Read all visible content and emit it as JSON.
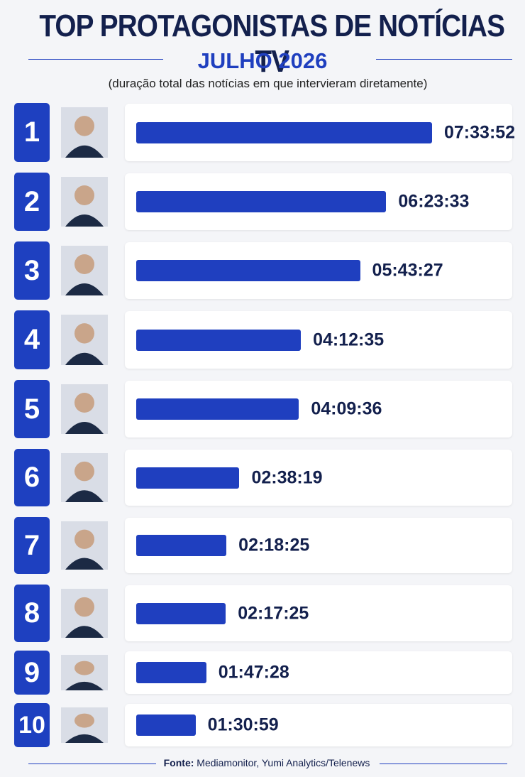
{
  "chart_data": {
    "type": "bar",
    "title": "TOP PROTAGONISTAS DE NOTÍCIAS TV",
    "subtitle": "JULHO 2026",
    "note": "(duração total das notícias em que intervieram diretamente)",
    "categories": [
      "1",
      "2",
      "3",
      "4",
      "5",
      "6",
      "7",
      "8",
      "9",
      "10"
    ],
    "values": [
      27232,
      23013,
      20607,
      15155,
      14976,
      9499,
      8305,
      8245,
      6448,
      5459
    ],
    "value_labels": [
      "07:33:52",
      "06:23:33",
      "05:43:27",
      "04:12:35",
      "04:09:36",
      "02:38:19",
      "02:18:25",
      "02:17:25",
      "01:47:28",
      "01:30:59"
    ],
    "color": "#1f3fbf",
    "source_label": "Fonte:",
    "source": "Mediamonitor, Yumi Analytics/Telenews"
  }
}
